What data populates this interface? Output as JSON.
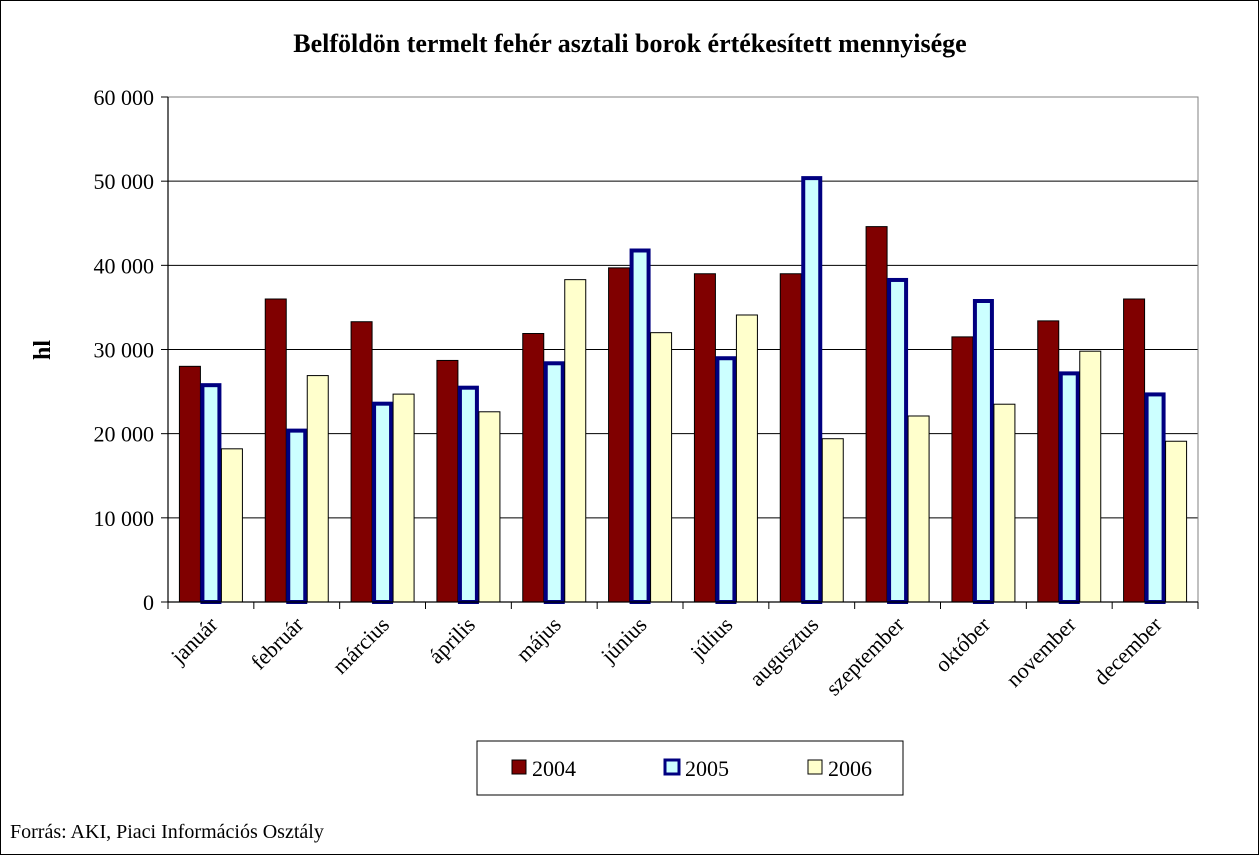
{
  "chart_data": {
    "type": "bar",
    "title": "Belföldön termelt fehér asztali borok értékesített mennyisége",
    "ylabel": "hl",
    "xlabel": "",
    "ylim": [
      0,
      60000
    ],
    "yticks": [
      0,
      10000,
      20000,
      30000,
      40000,
      50000,
      60000
    ],
    "ytick_labels": [
      "0",
      "10 000",
      "20 000",
      "30 000",
      "40 000",
      "50 000",
      "60 000"
    ],
    "grid": true,
    "legend_position": "bottom",
    "categories": [
      "január",
      "február",
      "március",
      "április",
      "május",
      "június",
      "július",
      "augusztus",
      "szeptember",
      "október",
      "november",
      "december"
    ],
    "series": [
      {
        "name": "2004",
        "color": "#800000",
        "values": [
          28000,
          36000,
          33300,
          28700,
          31900,
          39700,
          39000,
          39000,
          44600,
          31500,
          33400,
          36000
        ]
      },
      {
        "name": "2005",
        "color": "#ccffff",
        "stroke": "#000080",
        "values": [
          26000,
          20600,
          23800,
          25700,
          28600,
          42000,
          29200,
          50600,
          38500,
          36000,
          27400,
          24900
        ]
      },
      {
        "name": "2006",
        "color": "#ffffcc",
        "values": [
          18200,
          26900,
          24700,
          22600,
          38300,
          32000,
          34100,
          19400,
          22100,
          23500,
          29800,
          19100
        ]
      }
    ]
  },
  "footer": {
    "source": "Forrás: AKI, Piaci Információs Osztály"
  }
}
